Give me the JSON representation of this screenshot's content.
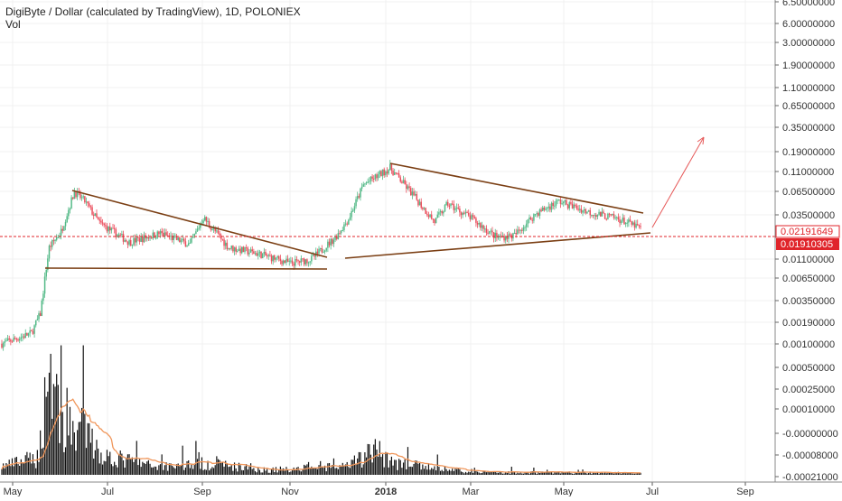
{
  "header": {
    "title": "DigiByte / Dollar (calculated by TradingView), 1D, POLONIEX",
    "volume_label": "Vol"
  },
  "colors": {
    "up": "#53b987",
    "down": "#eb4d5c",
    "volume": "#111111",
    "volume_ma": "#f0965a",
    "trendline": "#7b3f14",
    "arrow": "#e65a5a",
    "price_line": "#e0252b",
    "axis_text": "#333333",
    "grid": "#f0f0f0"
  },
  "chart_data": {
    "type": "candlestick",
    "title": "DigiByte / Dollar (calculated by TradingView), 1D, POLONIEX",
    "y_scale": "log",
    "x_ticks": [
      "May",
      "Jul",
      "Sep",
      "Nov",
      "2018",
      "Mar",
      "May",
      "Jul",
      "Sep"
    ],
    "price_ticks": [
      "6.50000000",
      "6.00000000",
      "3.00000000",
      "1.90000000",
      "1.10000000",
      "0.65000000",
      "0.35000000",
      "0.19000000",
      "0.11000000",
      "0.06500000",
      "0.03500000",
      "0.01100000",
      "0.00650000",
      "0.00350000",
      "0.00190000",
      "0.00100000"
    ],
    "volume_ticks": [
      "0.00050000",
      "0.00025000",
      "0.00010000",
      "-0.00000000",
      "-0.00008000",
      "-0.00021000"
    ],
    "last_price": "0.02191649",
    "prev_price": "0.01910305",
    "price_series_anchors": [
      {
        "date": "2017-04-20",
        "close": 0.00098
      },
      {
        "date": "2017-05-10",
        "close": 0.0013
      },
      {
        "date": "2017-05-16",
        "close": 0.0022
      },
      {
        "date": "2017-05-20",
        "close": 0.0075
      },
      {
        "date": "2017-05-22",
        "close": 0.013
      },
      {
        "date": "2017-05-30",
        "close": 0.02
      },
      {
        "date": "2017-06-08",
        "close": 0.058
      },
      {
        "date": "2017-06-15",
        "close": 0.045
      },
      {
        "date": "2017-06-25",
        "close": 0.025
      },
      {
        "date": "2017-07-15",
        "close": 0.015
      },
      {
        "date": "2017-08-05",
        "close": 0.019
      },
      {
        "date": "2017-08-25",
        "close": 0.014
      },
      {
        "date": "2017-09-03",
        "close": 0.029
      },
      {
        "date": "2017-09-20",
        "close": 0.013
      },
      {
        "date": "2017-10-10",
        "close": 0.011
      },
      {
        "date": "2017-11-01",
        "close": 0.0085
      },
      {
        "date": "2017-11-15",
        "close": 0.0095
      },
      {
        "date": "2017-12-01",
        "close": 0.017
      },
      {
        "date": "2017-12-10",
        "close": 0.028
      },
      {
        "date": "2017-12-20",
        "close": 0.07
      },
      {
        "date": "2018-01-07",
        "close": 0.11
      },
      {
        "date": "2018-01-20",
        "close": 0.06
      },
      {
        "date": "2018-02-06",
        "close": 0.026
      },
      {
        "date": "2018-02-15",
        "close": 0.042
      },
      {
        "date": "2018-03-01",
        "close": 0.03
      },
      {
        "date": "2018-03-20",
        "close": 0.017
      },
      {
        "date": "2018-04-01",
        "close": 0.018
      },
      {
        "date": "2018-04-15",
        "close": 0.032
      },
      {
        "date": "2018-05-01",
        "close": 0.045
      },
      {
        "date": "2018-05-20",
        "close": 0.034
      },
      {
        "date": "2018-06-10",
        "close": 0.028
      },
      {
        "date": "2018-06-25",
        "close": 0.0219
      }
    ],
    "volume_series_anchors": [
      {
        "date": "2017-04-20",
        "volume": 2e-05
      },
      {
        "date": "2017-05-15",
        "volume": 5e-05
      },
      {
        "date": "2017-05-22",
        "volume": 0.0005
      },
      {
        "date": "2017-06-01",
        "volume": 0.00015
      },
      {
        "date": "2017-06-12",
        "volume": 0.00018
      },
      {
        "date": "2017-06-25",
        "volume": 6e-05
      },
      {
        "date": "2017-08-01",
        "volume": 2e-05
      },
      {
        "date": "2017-09-05",
        "volume": 3e-05
      },
      {
        "date": "2017-10-15",
        "volume": 1e-05
      },
      {
        "date": "2017-12-10",
        "volume": 2e-05
      },
      {
        "date": "2017-12-28",
        "volume": 8e-05
      },
      {
        "date": "2018-01-10",
        "volume": 3e-05
      },
      {
        "date": "2018-03-01",
        "volume": 5e-06
      },
      {
        "date": "2018-06-25",
        "volume": 3e-06
      }
    ]
  }
}
